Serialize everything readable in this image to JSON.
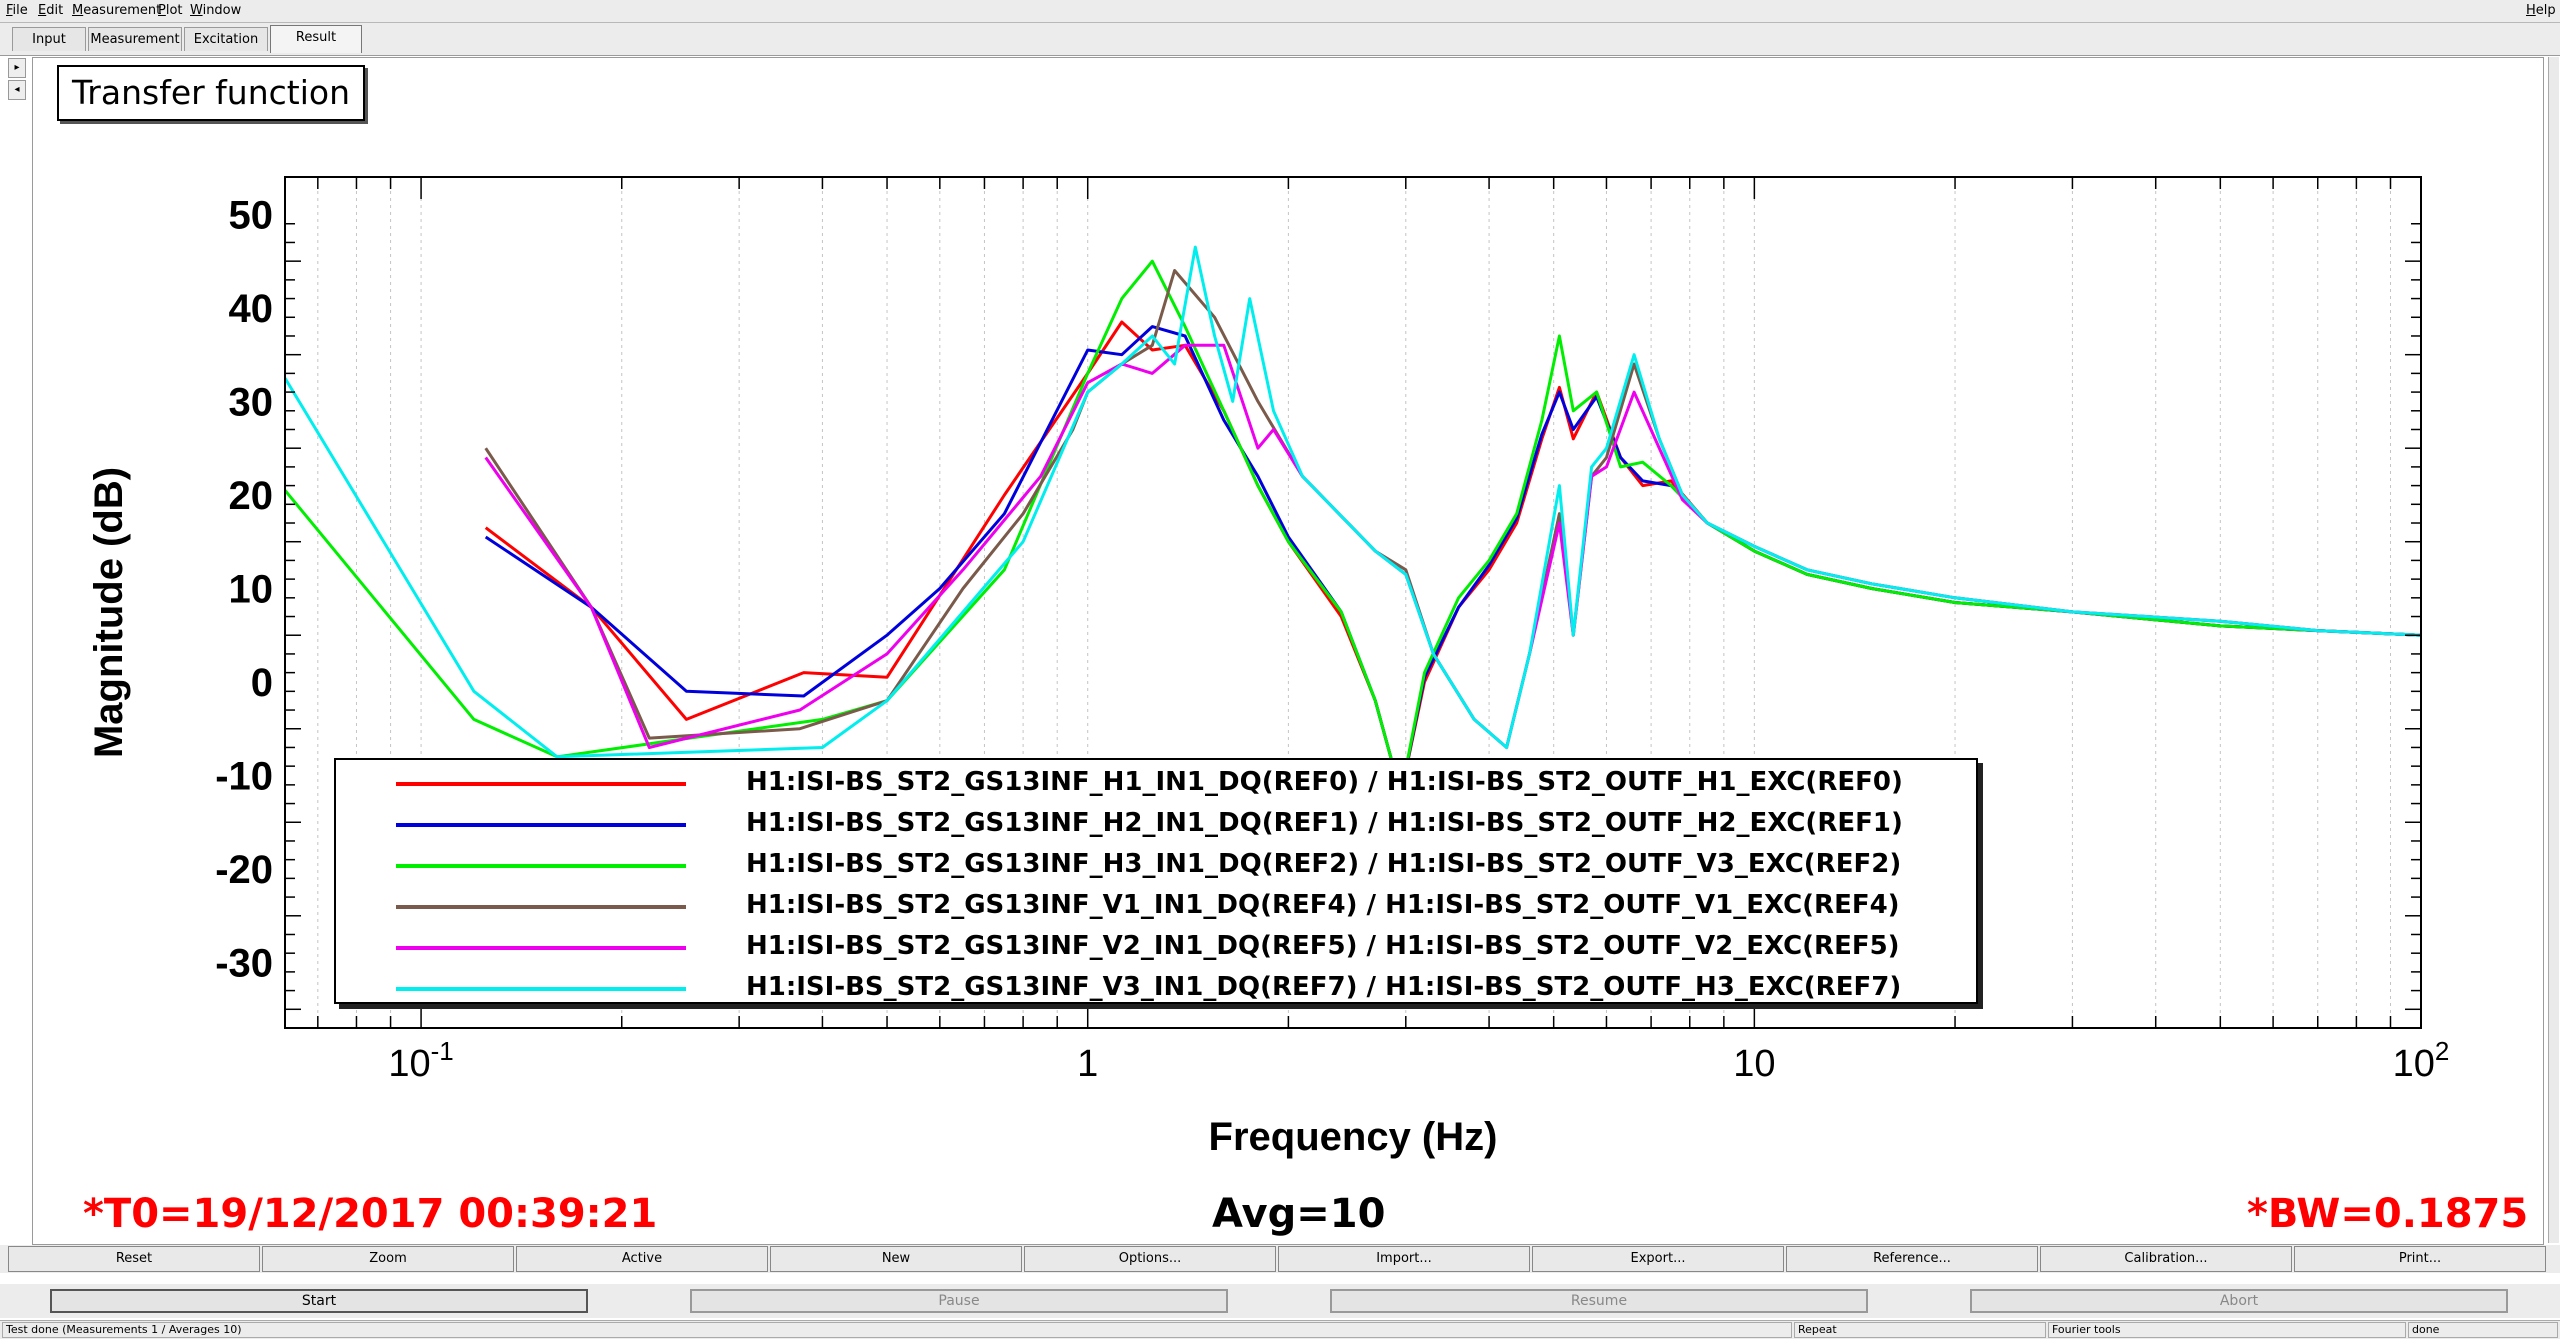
{
  "menubar": {
    "left": [
      "File",
      "Edit",
      "Measurement",
      "Plot",
      "Window"
    ],
    "right": "Help"
  },
  "tabs": [
    "Input",
    "Measurement",
    "Excitation",
    "Result"
  ],
  "active_tab": "Result",
  "plot": {
    "title": "Transfer function",
    "info_t0": "*T0=19/12/2017 00:39:21",
    "info_avg": "Avg=10",
    "info_bw": "*BW=0.1875"
  },
  "chart_data": {
    "type": "line",
    "title": "Transfer function",
    "xlabel": "Frequency (Hz)",
    "ylabel": "Magnitude (dB)",
    "xscale": "log",
    "xlim": [
      0.0625,
      100
    ],
    "ylim": [
      -37,
      54
    ],
    "yticks": [
      50,
      40,
      30,
      20,
      10,
      0,
      -10,
      -20,
      -30
    ],
    "xticks": [
      {
        "value": 0.1,
        "label": "10",
        "exp": "-1"
      },
      {
        "value": 1,
        "label": "1",
        "exp": ""
      },
      {
        "value": 10,
        "label": "10",
        "exp": ""
      },
      {
        "value": 100,
        "label": "10",
        "exp": "2"
      }
    ],
    "grid": true,
    "legend_position": "bottom-center",
    "series": [
      {
        "name": "H1:ISI-BS_ST2_GS13INF_H1_IN1_DQ(REF0) / H1:ISI-BS_ST2_OUTF_H1_EXC(REF0)",
        "color": "#ff0000",
        "x": [
          0.125,
          0.18,
          0.25,
          0.375,
          0.5,
          0.75,
          1.0,
          1.125,
          1.25,
          1.4,
          1.6,
          1.8,
          2.0,
          2.4,
          2.7,
          2.95,
          3.2,
          3.6,
          4.0,
          4.4,
          4.8,
          5.1,
          5.35,
          5.8,
          6.3,
          6.8,
          7.5,
          8.5,
          10,
          12,
          15,
          20,
          30,
          50,
          70,
          100
        ],
        "y": [
          16.5,
          8,
          -4,
          1,
          0.5,
          20,
          33,
          38.5,
          35.5,
          36,
          29,
          21,
          15,
          7,
          -2,
          -12,
          0,
          8,
          12,
          17,
          26,
          31.5,
          26,
          31,
          24,
          21,
          21.5,
          17,
          14,
          11.5,
          10,
          8.5,
          7.5,
          6,
          5.5,
          5
        ]
      },
      {
        "name": "H1:ISI-BS_ST2_GS13INF_H2_IN1_DQ(REF1) / H1:ISI-BS_ST2_OUTF_H2_EXC(REF1)",
        "color": "#0000dd",
        "x": [
          0.125,
          0.18,
          0.25,
          0.375,
          0.5,
          0.6,
          0.75,
          1.0,
          1.125,
          1.25,
          1.4,
          1.6,
          1.8,
          2.0,
          2.4,
          2.7,
          2.95,
          3.2,
          3.6,
          4.0,
          4.4,
          4.8,
          5.1,
          5.35,
          5.8,
          6.3,
          6.8,
          7.5,
          8.5,
          10,
          12,
          15,
          20,
          30,
          50,
          70,
          100
        ],
        "y": [
          15.5,
          8,
          -1,
          -1.5,
          5,
          10,
          18,
          35.5,
          35,
          38,
          37,
          28,
          22,
          15.5,
          7.5,
          -2,
          -12,
          0.5,
          8,
          12.5,
          17.5,
          26.5,
          31,
          27,
          30.5,
          24,
          21.5,
          21,
          17,
          14,
          11.5,
          10,
          8.5,
          7.5,
          6,
          5.5,
          5
        ]
      },
      {
        "name": "H1:ISI-BS_ST2_GS13INF_H3_IN1_DQ(REF2) / H1:ISI-BS_ST2_OUTF_V3_EXC(REF2)",
        "color": "#00ee00",
        "x": [
          0.0625,
          0.12,
          0.16,
          0.4,
          0.5,
          0.75,
          1.0,
          1.125,
          1.25,
          1.4,
          1.6,
          1.8,
          2.0,
          2.4,
          2.7,
          2.95,
          3.2,
          3.6,
          4.0,
          4.4,
          4.8,
          5.1,
          5.35,
          5.8,
          6.3,
          6.8,
          7.5,
          8.5,
          10,
          12,
          15,
          20,
          30,
          50,
          70,
          100
        ],
        "y": [
          20.5,
          -4,
          -8,
          -4,
          -2,
          12,
          33,
          41,
          45,
          38,
          29,
          21,
          15,
          7.5,
          -2,
          -12,
          1,
          9,
          13,
          18,
          28,
          37,
          29,
          31,
          23,
          23.5,
          21,
          17,
          14,
          11.5,
          10,
          8.5,
          7.5,
          6,
          5.5,
          5
        ]
      },
      {
        "name": "H1:ISI-BS_ST2_GS13INF_V1_IN1_DQ(REF4) / H1:ISI-BS_ST2_OUTF_V1_EXC(REF4)",
        "color": "#7a5a4a",
        "x": [
          0.125,
          0.18,
          0.22,
          0.37,
          0.5,
          0.65,
          0.8,
          0.95,
          1.0,
          1.125,
          1.25,
          1.35,
          1.55,
          1.8,
          2.1,
          2.7,
          3.0,
          3.3,
          3.8,
          4.25,
          4.6,
          5.1,
          5.35,
          5.7,
          6.0,
          6.6,
          7.2,
          7.8,
          8.5,
          10,
          12,
          15,
          20,
          30,
          50,
          70,
          100
        ],
        "y": [
          25,
          8,
          -6,
          -5,
          -2,
          10,
          18,
          27,
          31,
          34,
          36,
          44,
          39,
          30,
          22,
          14,
          12,
          3,
          -4,
          -7,
          3,
          18,
          5,
          22,
          24,
          34,
          26,
          20,
          17,
          14.5,
          12,
          10.5,
          9,
          7.5,
          6.5,
          5.5,
          5
        ]
      },
      {
        "name": "H1:ISI-BS_ST2_GS13INF_V2_IN1_DQ(REF5) / H1:ISI-BS_ST2_OUTF_V2_EXC(REF5)",
        "color": "#ee00ee",
        "x": [
          0.125,
          0.18,
          0.22,
          0.37,
          0.5,
          0.65,
          0.85,
          1.0,
          1.125,
          1.25,
          1.4,
          1.6,
          1.8,
          1.9,
          2.1,
          2.7,
          3.0,
          3.3,
          3.8,
          4.25,
          4.6,
          5.1,
          5.35,
          5.7,
          6.0,
          6.6,
          7.2,
          7.8,
          8.5,
          10,
          12,
          15,
          20,
          30,
          50,
          70,
          100
        ],
        "y": [
          24,
          8,
          -7,
          -3,
          3,
          12,
          22,
          32,
          34,
          33,
          36,
          36,
          25,
          27,
          22,
          14,
          11.5,
          3,
          -4,
          -7,
          3,
          17,
          5,
          22,
          23,
          31,
          25,
          19.5,
          17,
          14.5,
          12,
          10.5,
          9,
          7.5,
          6.5,
          5.5,
          5
        ]
      },
      {
        "name": "H1:ISI-BS_ST2_GS13INF_V3_IN1_DQ(REF7) / H1:ISI-BS_ST2_OUTF_H3_EXC(REF7)",
        "color": "#00eeee",
        "x": [
          0.0625,
          0.12,
          0.16,
          0.4,
          0.5,
          0.8,
          1.0,
          1.125,
          1.25,
          1.35,
          1.45,
          1.55,
          1.65,
          1.75,
          1.9,
          2.1,
          2.7,
          3.0,
          3.3,
          3.8,
          4.25,
          4.6,
          5.1,
          5.35,
          5.7,
          6.0,
          6.6,
          7.2,
          7.8,
          8.5,
          10,
          12,
          15,
          20,
          30,
          50,
          70,
          100
        ],
        "y": [
          32.5,
          -1,
          -8,
          -7,
          -2,
          15,
          31,
          34,
          37,
          34,
          46.5,
          37,
          30,
          41,
          29,
          22,
          14,
          11.5,
          3,
          -4,
          -7,
          3,
          21,
          5,
          23,
          25,
          35,
          26,
          20,
          17,
          14.5,
          12,
          10.5,
          9,
          7.5,
          6.5,
          5.5,
          5
        ]
      }
    ]
  },
  "buttons": [
    "Reset",
    "Zoom",
    "Active",
    "New",
    "Options...",
    "Import...",
    "Export...",
    "Reference...",
    "Calibration...",
    "Print..."
  ],
  "actions": [
    "Start",
    "Pause",
    "Resume",
    "Abort"
  ],
  "status": {
    "main": "Test done (Measurements 1 / Averages 10)",
    "mode": "Repeat",
    "tool": "Fourier tools",
    "state": "done"
  }
}
